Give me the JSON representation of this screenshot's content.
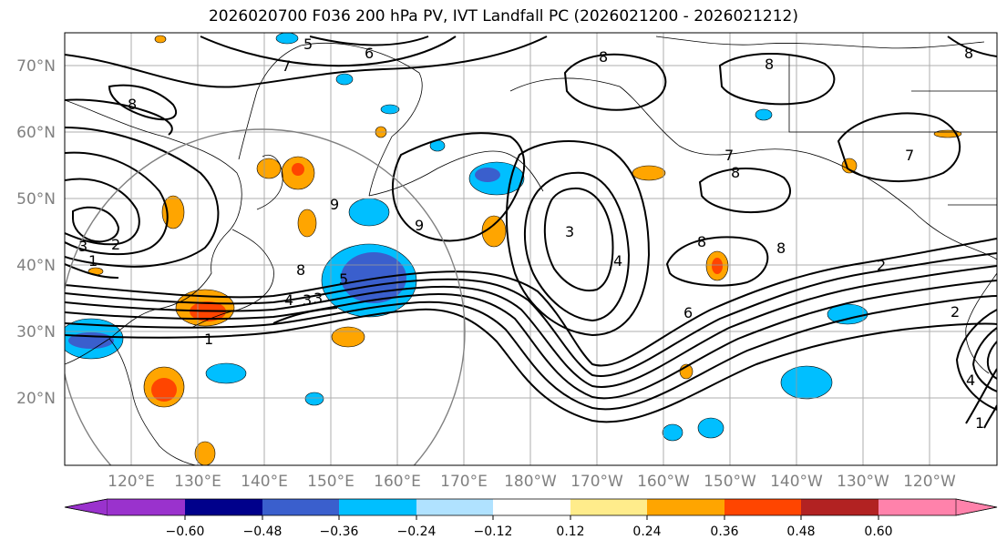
{
  "title": "2026020700 F036 200 hPa PV, IVT Landfall PC (2026021200 - 2026021212)",
  "lat_labels": [
    "70°N",
    "60°N",
    "50°N",
    "40°N",
    "30°N",
    "20°N"
  ],
  "lon_labels": [
    "120°E",
    "130°E",
    "140°E",
    "150°E",
    "160°E",
    "170°E",
    "180°W",
    "170°W",
    "160°W",
    "150°W",
    "140°W",
    "130°W",
    "120°W"
  ],
  "colorbar": {
    "colors": [
      "#9a32cd",
      "#00008b",
      "#3a5fcd",
      "#00bfff",
      "#b0e2ff",
      "#ffffff",
      "#ffec8b",
      "#ffa500",
      "#ff4500",
      "#b22222",
      "#ff82ab"
    ],
    "tick_labels": [
      "−0.60",
      "−0.48",
      "−0.36",
      "−0.24",
      "−0.12",
      "0.12",
      "0.24",
      "0.36",
      "0.48",
      "0.60"
    ]
  },
  "contour_labels": [
    "5",
    "6",
    "7",
    "8",
    "8",
    "8",
    "8",
    "9",
    "9",
    "3",
    "2",
    "1",
    "8",
    "3",
    "4",
    "3",
    "5",
    "1",
    "3",
    "4",
    "6",
    "8",
    "8",
    "7",
    "8",
    "7",
    "2",
    "2",
    "1",
    "4"
  ],
  "chart_data": {
    "type": "map",
    "field": "200 hPa PV contours with IVT landfall PC shading",
    "lat_range": [
      10,
      75
    ],
    "lon_range": [
      110,
      250
    ],
    "colorbar_levels": [
      -0.6,
      -0.48,
      -0.36,
      -0.24,
      -0.12,
      0.12,
      0.24,
      0.36,
      0.48,
      0.6
    ]
  }
}
